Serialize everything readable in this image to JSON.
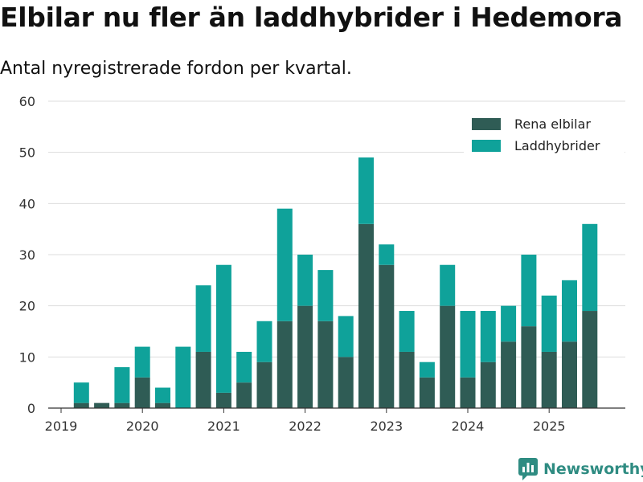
{
  "header": {
    "title": "Elbilar nu fler än laddhybrider i Hedemora",
    "subtitle": "Antal nyregistrerade fordon per kvartal."
  },
  "brand": {
    "name": "Newsworthy",
    "color": "#2f8c82"
  },
  "colors": {
    "electric": "#2f5c55",
    "hybrid": "#0fa29a",
    "grid": "#dddddd",
    "axis": "#333333"
  },
  "chart_data": {
    "type": "bar",
    "stacked": true,
    "title": "Elbilar nu fler än laddhybrider i Hedemora",
    "subtitle": "Antal nyregistrerade fordon per kvartal.",
    "xlabel": "",
    "ylabel": "",
    "ylim": [
      0,
      60
    ],
    "yticks": [
      0,
      10,
      20,
      30,
      40,
      50,
      60
    ],
    "xticks": [
      "2019",
      "2020",
      "2021",
      "2022",
      "2023",
      "2024",
      "2025"
    ],
    "grid": true,
    "legend_position": "top-right",
    "categories": [
      "2019 Q1",
      "2019 Q2",
      "2019 Q3",
      "2019 Q4",
      "2020 Q1",
      "2020 Q2",
      "2020 Q3",
      "2020 Q4",
      "2021 Q1",
      "2021 Q2",
      "2021 Q3",
      "2021 Q4",
      "2022 Q1",
      "2022 Q2",
      "2022 Q3",
      "2022 Q4",
      "2023 Q1",
      "2023 Q2",
      "2023 Q3",
      "2023 Q4",
      "2024 Q1",
      "2024 Q2",
      "2024 Q3",
      "2024 Q4",
      "2025 Q1",
      "2025 Q2",
      "2025 Q3"
    ],
    "series": [
      {
        "name": "Rena elbilar",
        "values": [
          0,
          1,
          1,
          1,
          6,
          1,
          0,
          11,
          3,
          5,
          9,
          17,
          20,
          17,
          10,
          36,
          28,
          11,
          6,
          20,
          6,
          9,
          13,
          16,
          11,
          13,
          19
        ]
      },
      {
        "name": "Laddhybrider",
        "values": [
          0,
          4,
          0,
          7,
          6,
          3,
          12,
          13,
          25,
          6,
          8,
          22,
          10,
          10,
          8,
          13,
          4,
          8,
          3,
          8,
          13,
          10,
          7,
          14,
          11,
          12,
          17
        ]
      }
    ]
  }
}
